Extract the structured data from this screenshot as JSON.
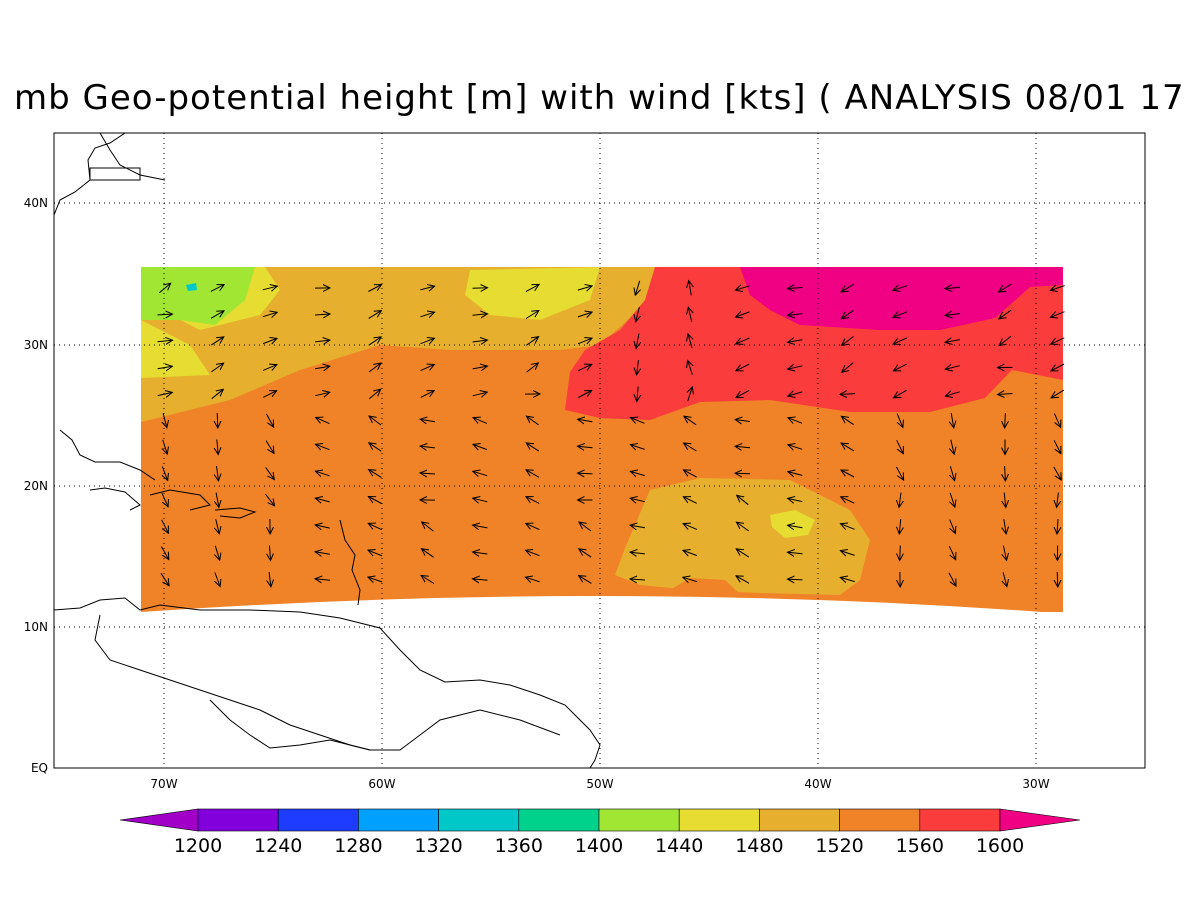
{
  "title": "mb Geo-potential height [m] with wind [kts] ( ANALYSIS 08/01 17",
  "map": {
    "lon_labels": [
      "70W",
      "60W",
      "50W",
      "40W",
      "30W"
    ],
    "lat_labels": [
      "40N",
      "30N",
      "20N",
      "10N",
      "EQ"
    ],
    "gridlines": "dotted",
    "shaded_field": "Geo-potential height",
    "vector_field": "wind"
  },
  "colorbar": {
    "labels": [
      "1200",
      "1240",
      "1280",
      "1320",
      "1360",
      "1400",
      "1440",
      "1480",
      "1520",
      "1560",
      "1600"
    ],
    "colors": [
      "#a000c8",
      "#8200dc",
      "#1e3cff",
      "#00a0ff",
      "#00c8c8",
      "#00d28c",
      "#a0e632",
      "#e6dc32",
      "#e6af2d",
      "#f08228",
      "#fa3c3c",
      "#f00082"
    ]
  }
}
